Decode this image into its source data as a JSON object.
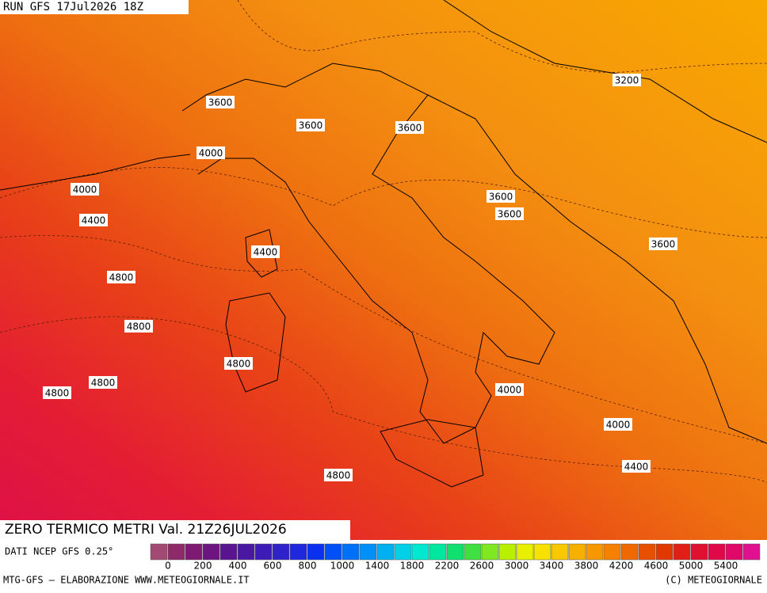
{
  "header": {
    "run": "RUN GFS 17Jul2026 18Z"
  },
  "map": {
    "title": "ZERO TERMICO METRI Val. 21Z26JUL2026",
    "contour_labels": [
      3600,
      3600,
      3600,
      3200,
      4000,
      4000,
      3600,
      3600,
      4400,
      3600,
      4400,
      4800,
      4800,
      4800,
      4800,
      4800,
      4000,
      4000,
      4400,
      4800
    ]
  },
  "colorbar": {
    "source": "DATI NCEP GFS 0.25°",
    "labels": [
      0,
      200,
      400,
      600,
      800,
      1000,
      1400,
      1800,
      2200,
      2600,
      3000,
      3400,
      3800,
      4200,
      4600,
      5000,
      5400
    ],
    "colors": [
      "#a24a73",
      "#8f2a6a",
      "#7e1a72",
      "#6c1580",
      "#5a1490",
      "#4a18a0",
      "#3c1cb4",
      "#2e22c8",
      "#1e28dc",
      "#0a30f0",
      "#0050f8",
      "#0070f8",
      "#0090f8",
      "#00b0f0",
      "#00d0e8",
      "#00e8d0",
      "#00e8a0",
      "#10e070",
      "#40e040",
      "#80e820",
      "#b8f000",
      "#e8f000",
      "#f8e000",
      "#f8c800",
      "#f8b000",
      "#f89800",
      "#f88000",
      "#f06800",
      "#e85000",
      "#e03800",
      "#e02018",
      "#e01030",
      "#e00848",
      "#e00868",
      "#e01090"
    ]
  },
  "footer": {
    "left": "MTG-GFS — ELABORAZIONE WWW.METEOGIORNALE.IT",
    "right": "(C) METEOGIORNALE"
  }
}
